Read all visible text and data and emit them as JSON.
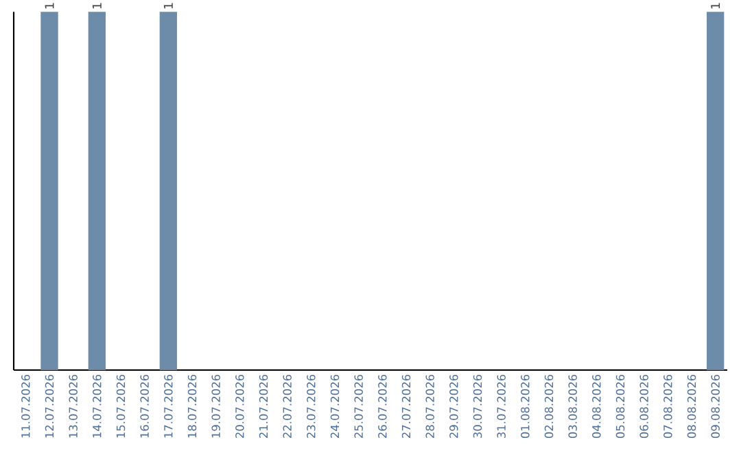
{
  "chart_data": {
    "type": "bar",
    "categories": [
      "11.07.2026",
      "12.07.2026",
      "13.07.2026",
      "14.07.2026",
      "15.07.2026",
      "16.07.2026",
      "17.07.2026",
      "18.07.2026",
      "19.07.2026",
      "20.07.2026",
      "21.07.2026",
      "22.07.2026",
      "23.07.2026",
      "24.07.2026",
      "25.07.2026",
      "26.07.2026",
      "27.07.2026",
      "28.07.2026",
      "29.07.2026",
      "30.07.2026",
      "31.07.2026",
      "01.08.2026",
      "02.08.2026",
      "03.08.2026",
      "04.08.2026",
      "05.08.2026",
      "06.08.2026",
      "07.08.2026",
      "08.08.2026",
      "09.08.2026"
    ],
    "values": [
      0,
      1,
      0,
      1,
      0,
      0,
      1,
      0,
      0,
      0,
      0,
      0,
      0,
      0,
      0,
      0,
      0,
      0,
      0,
      0,
      0,
      0,
      0,
      0,
      0,
      0,
      0,
      0,
      0,
      1
    ],
    "value_labels": [
      null,
      "1",
      null,
      "1",
      null,
      null,
      "1",
      null,
      null,
      null,
      null,
      null,
      null,
      null,
      null,
      null,
      null,
      null,
      null,
      null,
      null,
      null,
      null,
      null,
      null,
      null,
      null,
      null,
      null,
      "1"
    ],
    "color": "#6d8ca9"
  }
}
